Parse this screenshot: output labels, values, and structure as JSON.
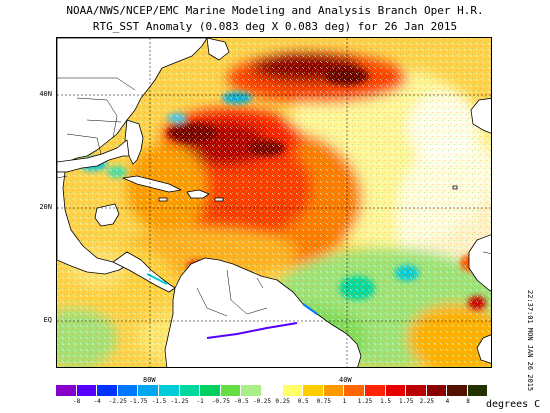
{
  "title_line1": "NOAA/NWS/NCEP/EMC Marine Modeling and Analysis Branch Oper H.R.",
  "title_line2": "RTG_SST Anomaly (0.083 deg X 0.083 deg) for 26 Jan 2015",
  "timestamp": "22:37:01 MON JAN 26 2015",
  "lat_labels": [
    "40N",
    "20N",
    "EQ"
  ],
  "lon_labels": [
    "80W",
    "40W"
  ],
  "colorbar": {
    "units": "degrees C",
    "ticks": [
      "-8",
      "-4",
      "-2.25",
      "-1.75",
      "-1.5",
      "-1.25",
      "-1",
      "-0.75",
      "-0.5",
      "-0.25",
      "0.25",
      "0.5",
      "0.75",
      "1",
      "1.25",
      "1.5",
      "1.75",
      "2.25",
      "4",
      "8"
    ],
    "colors": [
      "#8800cc",
      "#5500ff",
      "#0033ff",
      "#0077ff",
      "#00a8f0",
      "#00ccd8",
      "#00d8a0",
      "#00d060",
      "#66dd44",
      "#aaee88",
      "#ffffff",
      "#ffff66",
      "#ffcc00",
      "#ff9900",
      "#ff6600",
      "#ff2200",
      "#e60000",
      "#bb0000",
      "#880000",
      "#551100",
      "#223300"
    ]
  }
}
